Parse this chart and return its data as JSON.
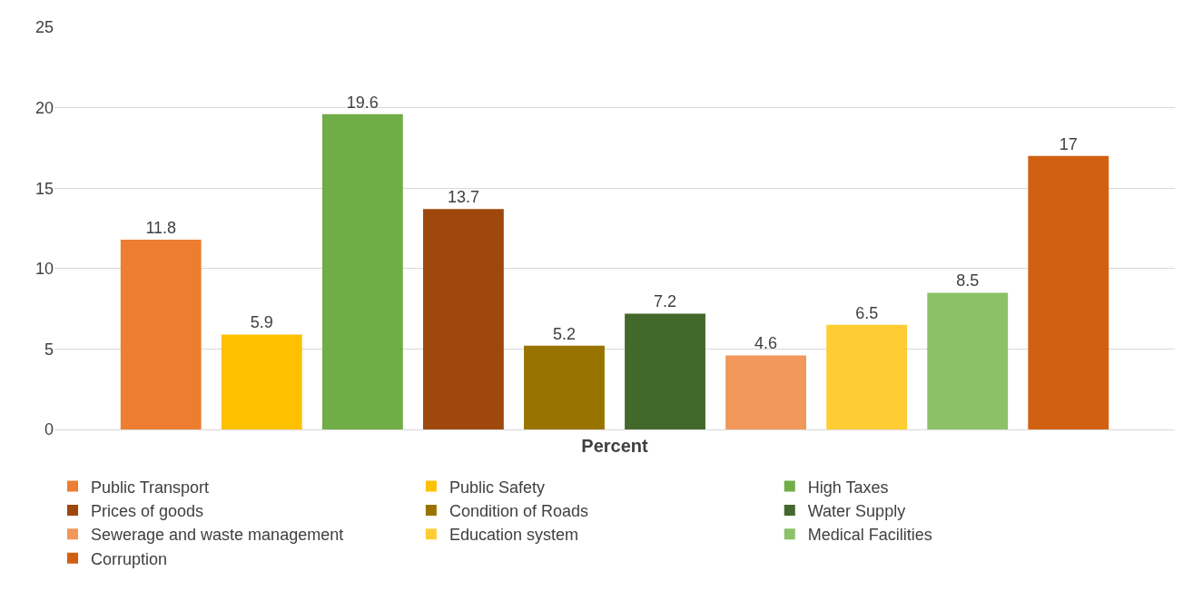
{
  "chart_data": {
    "type": "bar",
    "categories": [
      "Percent"
    ],
    "ylim": [
      0,
      25
    ],
    "yticks": [
      0,
      5,
      10,
      15,
      20,
      25
    ],
    "grid": "y",
    "legend": "bottom",
    "data_labels": true,
    "series": [
      {
        "name": "Public Transport",
        "color": "#ed7d31",
        "values": [
          11.8
        ]
      },
      {
        "name": "Public Safety",
        "color": "#ffc000",
        "values": [
          5.9
        ]
      },
      {
        "name": "High Taxes",
        "color": "#70ad47",
        "values": [
          19.6
        ]
      },
      {
        "name": "Prices of goods",
        "color": "#9e480e",
        "values": [
          13.7
        ]
      },
      {
        "name": "Condition of Roads",
        "color": "#997300",
        "values": [
          5.2
        ]
      },
      {
        "name": "Water Supply",
        "color": "#43682b",
        "values": [
          7.2
        ]
      },
      {
        "name": "Sewerage and waste management",
        "color": "#f1975a",
        "values": [
          4.6
        ]
      },
      {
        "name": "Education system",
        "color": "#ffcd33",
        "values": [
          6.5
        ]
      },
      {
        "name": "Medical Facilities",
        "color": "#8cc168",
        "values": [
          8.5
        ]
      },
      {
        "name": "Corruption",
        "color": "#d26012",
        "values": [
          17
        ]
      }
    ]
  }
}
